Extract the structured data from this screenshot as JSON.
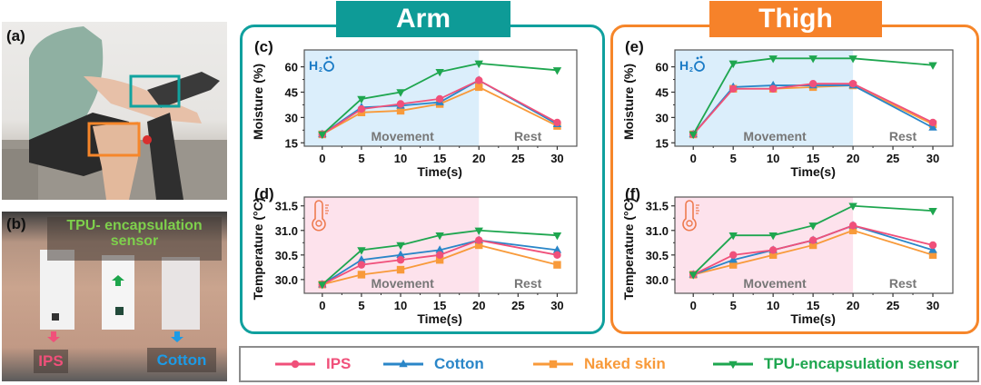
{
  "photos": {
    "a": {
      "label": "(a)"
    },
    "b": {
      "label": "(b)",
      "tpu_caption_line1": "TPU- encapsulation",
      "tpu_caption_line2": "sensor",
      "ips_caption": "IPS",
      "cotton_caption": "Cotton"
    }
  },
  "groups": {
    "arm": {
      "title": "Arm",
      "color": "#0e9b97"
    },
    "thigh": {
      "title": "Thigh",
      "color": "#f6822a"
    }
  },
  "series_styles": {
    "IPS": {
      "color": "#f0507a",
      "marker": "circle"
    },
    "Cotton": {
      "color": "#2a86c8",
      "marker": "triangle-up"
    },
    "Naked skin": {
      "color": "#f89a3a",
      "marker": "square"
    },
    "TPU-encapsulation sensor": {
      "color": "#1ea64f",
      "marker": "triangle-down"
    }
  },
  "legend": {
    "items": [
      "IPS",
      "Cotton",
      "Naked skin",
      "TPU-encapsulation sensor"
    ]
  },
  "chart_data": [
    {
      "id": "c",
      "panel_label": "(c)",
      "type": "line",
      "xlabel": "Time(s)",
      "ylabel": "Moisture (%)",
      "x": [
        0,
        5,
        10,
        15,
        20,
        30
      ],
      "xlim": [
        -2.3,
        32.5
      ],
      "ylim": [
        13,
        70
      ],
      "xticks": [
        0,
        5,
        10,
        15,
        20,
        25,
        30
      ],
      "yticks": [
        15,
        30,
        45,
        60
      ],
      "ytick_labels": [
        "15",
        "30",
        "45",
        "60"
      ],
      "xtick_labels": [
        "0",
        "5",
        "10",
        "15",
        "20",
        "25",
        "30"
      ],
      "shaded_region": {
        "from": -2.3,
        "to": 20,
        "color": "#dbeefb",
        "label": "Movement"
      },
      "rest_label": "Rest",
      "icon": "water-molecule-icon",
      "icon_text": "H2O",
      "icon_color": "#1a7bc6",
      "series": [
        {
          "name": "IPS",
          "values": [
            20,
            35,
            38,
            41,
            52,
            27
          ]
        },
        {
          "name": "Cotton",
          "values": [
            20,
            36,
            37,
            39,
            52,
            26
          ]
        },
        {
          "name": "Naked skin",
          "values": [
            20,
            33,
            34,
            38,
            48,
            25
          ]
        },
        {
          "name": "TPU-encapsulation sensor",
          "values": [
            20,
            41,
            45,
            57,
            62,
            58
          ]
        }
      ]
    },
    {
      "id": "d",
      "panel_label": "(d)",
      "type": "line",
      "xlabel": "Time(s)",
      "ylabel": "Temperature (°C)",
      "x": [
        0,
        5,
        10,
        15,
        20,
        30
      ],
      "xlim": [
        -2.3,
        32.5
      ],
      "ylim": [
        29.72,
        31.68
      ],
      "xticks": [
        0,
        5,
        10,
        15,
        20,
        25,
        30
      ],
      "yticks": [
        30.0,
        30.5,
        31.0,
        31.5
      ],
      "ytick_labels": [
        "30.0",
        "30.5",
        "31.0",
        "31.5"
      ],
      "xtick_labels": [
        "0",
        "5",
        "10",
        "15",
        "20",
        "25",
        "30"
      ],
      "shaded_region": {
        "from": -2.3,
        "to": 20,
        "color": "#fde2ec",
        "label": "Movement"
      },
      "rest_label": "Rest",
      "icon": "thermometer-icon",
      "icon_color": "#ee7b4f",
      "series": [
        {
          "name": "IPS",
          "values": [
            29.9,
            30.3,
            30.4,
            30.5,
            30.8,
            30.5
          ]
        },
        {
          "name": "Cotton",
          "values": [
            29.9,
            30.4,
            30.5,
            30.6,
            30.8,
            30.6
          ]
        },
        {
          "name": "Naked skin",
          "values": [
            29.9,
            30.1,
            30.2,
            30.4,
            30.7,
            30.3
          ]
        },
        {
          "name": "TPU-encapsulation sensor",
          "values": [
            29.9,
            30.6,
            30.7,
            30.9,
            31.0,
            30.9
          ]
        }
      ]
    },
    {
      "id": "e",
      "panel_label": "(e)",
      "type": "line",
      "xlabel": "Time(s)",
      "ylabel": "Moisture (%)",
      "x": [
        0,
        5,
        10,
        15,
        20,
        30
      ],
      "xlim": [
        -2.3,
        32.5
      ],
      "ylim": [
        13,
        70
      ],
      "xticks": [
        0,
        5,
        10,
        15,
        20,
        25,
        30
      ],
      "yticks": [
        15,
        30,
        45,
        60
      ],
      "ytick_labels": [
        "15",
        "30",
        "45",
        "60"
      ],
      "xtick_labels": [
        "0",
        "5",
        "10",
        "15",
        "20",
        "25",
        "30"
      ],
      "shaded_region": {
        "from": -2.3,
        "to": 20,
        "color": "#dbeefb",
        "label": "Movement"
      },
      "rest_label": "Rest",
      "icon": "water-molecule-icon",
      "icon_text": "H2O",
      "icon_color": "#1a7bc6",
      "series": [
        {
          "name": "IPS",
          "values": [
            20,
            47,
            47,
            50,
            50,
            27
          ]
        },
        {
          "name": "Cotton",
          "values": [
            20,
            48,
            49,
            49,
            49,
            24
          ]
        },
        {
          "name": "Naked skin",
          "values": [
            20,
            47,
            47,
            48,
            49,
            26
          ]
        },
        {
          "name": "TPU-encapsulation sensor",
          "values": [
            20,
            62,
            65,
            65,
            65,
            61
          ]
        }
      ]
    },
    {
      "id": "f",
      "panel_label": "(f)",
      "type": "line",
      "xlabel": "Time(s)",
      "ylabel": "Temperature (°C)",
      "x": [
        0,
        5,
        10,
        15,
        20,
        30
      ],
      "xlim": [
        -2.3,
        32.5
      ],
      "ylim": [
        29.72,
        31.68
      ],
      "xticks": [
        0,
        5,
        10,
        15,
        20,
        25,
        30
      ],
      "yticks": [
        30.0,
        30.5,
        31.0,
        31.5
      ],
      "ytick_labels": [
        "30.0",
        "30.5",
        "31.0",
        "31.5"
      ],
      "xtick_labels": [
        "0",
        "5",
        "10",
        "15",
        "20",
        "25",
        "30"
      ],
      "shaded_region": {
        "from": -2.3,
        "to": 20,
        "color": "#fde2ec",
        "label": "Movement"
      },
      "rest_label": "Rest",
      "icon": "thermometer-icon",
      "icon_color": "#ee7b4f",
      "series": [
        {
          "name": "IPS",
          "values": [
            30.1,
            30.5,
            30.6,
            30.8,
            31.1,
            30.7
          ]
        },
        {
          "name": "Cotton",
          "values": [
            30.1,
            30.4,
            30.6,
            30.8,
            31.1,
            30.6
          ]
        },
        {
          "name": "Naked skin",
          "values": [
            30.1,
            30.3,
            30.5,
            30.7,
            31.0,
            30.5
          ]
        },
        {
          "name": "TPU-encapsulation sensor",
          "values": [
            30.1,
            30.9,
            30.9,
            31.1,
            31.5,
            31.4
          ]
        }
      ]
    }
  ]
}
